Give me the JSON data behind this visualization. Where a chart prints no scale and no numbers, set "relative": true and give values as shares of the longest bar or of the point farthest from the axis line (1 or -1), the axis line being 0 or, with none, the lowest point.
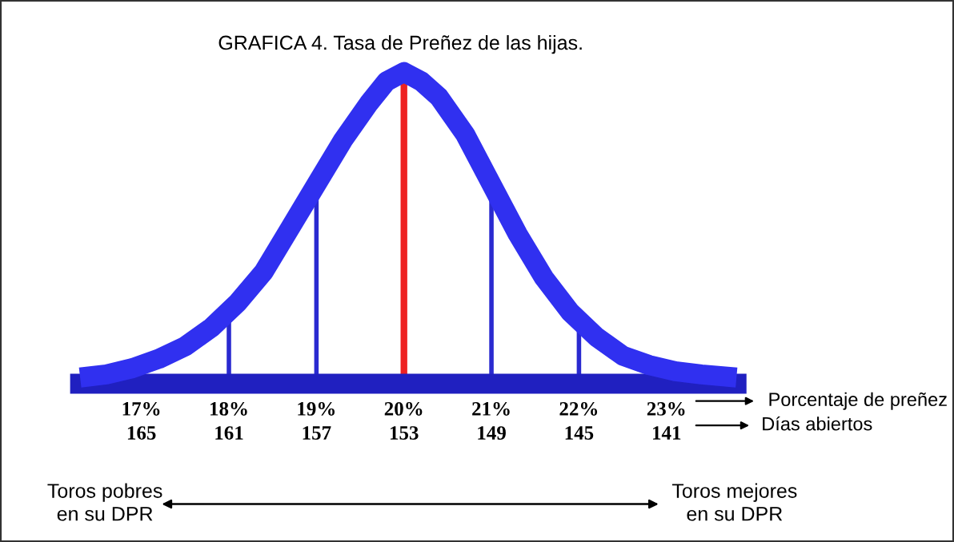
{
  "chart_data": {
    "type": "line",
    "title": "GRAFICA 4. Tasa de Preñez de las hijas.",
    "relative": true,
    "xlabel": "Porcentaje de preñez",
    "x2label": "Días abiertos",
    "x": [
      16.3,
      16.6,
      16.9,
      17.2,
      17.5,
      17.8,
      18.1,
      18.4,
      18.7,
      19.0,
      19.3,
      19.6,
      19.8,
      20.0,
      20.2,
      20.4,
      20.7,
      21.0,
      21.3,
      21.6,
      21.9,
      22.2,
      22.5,
      22.8,
      23.1,
      23.4,
      23.8
    ],
    "series": [
      {
        "color": "#3030f0",
        "values": [
          0.02,
          0.03,
          0.05,
          0.08,
          0.12,
          0.18,
          0.26,
          0.36,
          0.5,
          0.64,
          0.78,
          0.9,
          0.97,
          1.0,
          0.97,
          0.92,
          0.8,
          0.64,
          0.48,
          0.34,
          0.23,
          0.15,
          0.09,
          0.06,
          0.04,
          0.03,
          0.02
        ]
      }
    ],
    "xlim": [
      16.3,
      23.8
    ],
    "xticks": [
      {
        "value": 17,
        "label": "17%"
      },
      {
        "value": 18,
        "label": "18%"
      },
      {
        "value": 19,
        "label": "19%"
      },
      {
        "value": 20,
        "label": "20%"
      },
      {
        "value": 21,
        "label": "21%"
      },
      {
        "value": 22,
        "label": "22%"
      },
      {
        "value": 23,
        "label": "23%"
      }
    ],
    "x2lim": [
      167.8,
      137.8
    ],
    "x2ticks": [
      165,
      161,
      157,
      153,
      149,
      145,
      141
    ],
    "ref_lines": [
      {
        "axis": "x",
        "value": 18,
        "color": "#2a2ad0"
      },
      {
        "axis": "x",
        "value": 19,
        "color": "#2a2ad0"
      },
      {
        "axis": "x",
        "value": 20,
        "color": "#ee2222"
      },
      {
        "axis": "x",
        "value": 21,
        "color": "#2a2ad0"
      },
      {
        "axis": "x",
        "value": 22,
        "color": "#2a2ad0"
      }
    ],
    "annotations": [
      "Toros pobres\nen su DPR",
      "Toros mejores\nen su DPR"
    ],
    "grid": false,
    "legend": false
  }
}
